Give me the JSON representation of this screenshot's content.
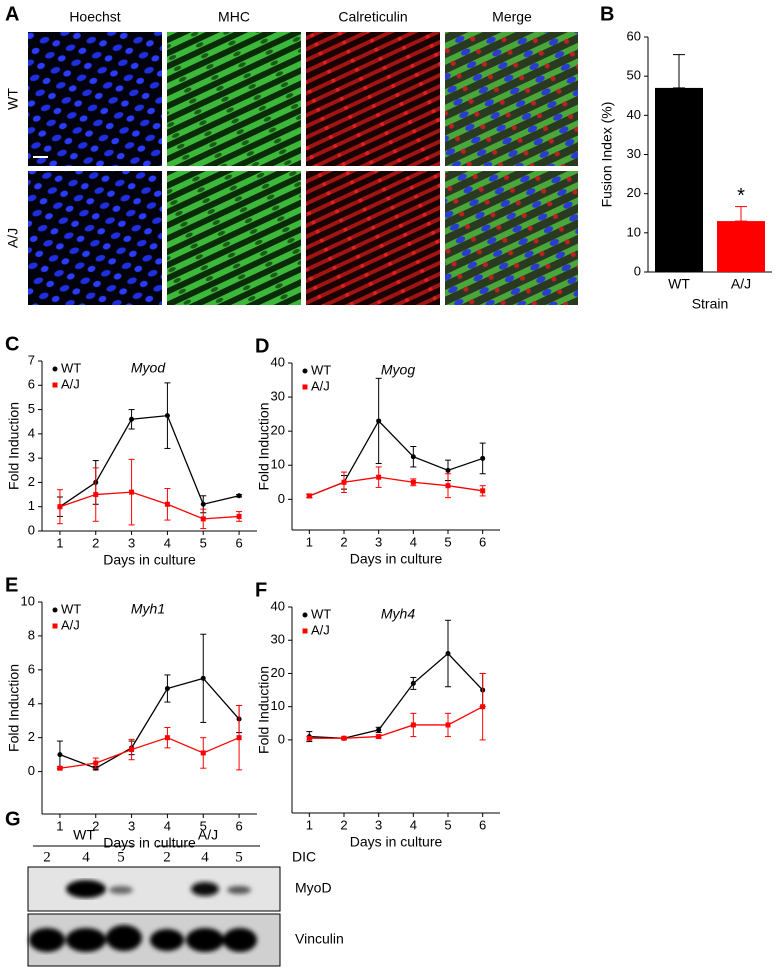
{
  "image_grid": {
    "panel": "A",
    "columns": [
      "Hoechst",
      "MHC",
      "Calreticulin",
      "Merge"
    ],
    "rows": [
      "WT",
      "A/J"
    ]
  },
  "chart_data": [
    {
      "type": "bar",
      "panel": "B",
      "ylabel": "Fusion Index (%)",
      "xlabel": "Strain",
      "categories": [
        "WT",
        "A/J"
      ],
      "values": [
        47,
        13
      ],
      "errors": [
        8.5,
        3.7
      ],
      "colors": [
        "#000000",
        "#ff0000"
      ],
      "annotation": "*",
      "ylim": [
        0,
        60
      ],
      "yticks": [
        0,
        10,
        20,
        30,
        40,
        50,
        60
      ]
    },
    {
      "type": "line",
      "panel": "C",
      "title": "Myod",
      "xlabel": "Days in culture",
      "ylabel": "Fold Induction",
      "x": [
        1,
        2,
        3,
        4,
        5,
        6
      ],
      "xlim": [
        0.5,
        6.5
      ],
      "xticks": [
        1,
        2,
        3,
        4,
        5,
        6
      ],
      "ylim": [
        0,
        7
      ],
      "yticks": [
        0,
        1,
        2,
        3,
        4,
        5,
        6,
        7
      ],
      "series": [
        {
          "name": "WT",
          "color": "#000000",
          "values": [
            1.0,
            2.0,
            4.6,
            4.75,
            1.1,
            1.45
          ],
          "errors": [
            0.4,
            0.9,
            0.4,
            1.35,
            0.35,
            0.05
          ]
        },
        {
          "name": "A/J",
          "color": "#ff0000",
          "values": [
            1.0,
            1.5,
            1.6,
            1.1,
            0.5,
            0.6
          ],
          "errors": [
            0.7,
            1.1,
            1.35,
            0.65,
            0.4,
            0.2
          ]
        }
      ]
    },
    {
      "type": "line",
      "panel": "D",
      "title": "Myog",
      "xlabel": "Days in culture",
      "ylabel": "Fold Induction",
      "x": [
        1,
        2,
        3,
        4,
        5,
        6
      ],
      "xlim": [
        0.5,
        6.5
      ],
      "xticks": [
        1,
        2,
        3,
        4,
        5,
        6
      ],
      "ylim": [
        -9,
        40
      ],
      "yticks": [
        0,
        10,
        20,
        30,
        40
      ],
      "series": [
        {
          "name": "WT",
          "color": "#000000",
          "values": [
            1,
            5,
            23,
            12.5,
            8.5,
            12
          ],
          "errors": [
            0.5,
            2,
            12.5,
            3,
            3,
            4.5
          ]
        },
        {
          "name": "A/J",
          "color": "#ff0000",
          "values": [
            1,
            5,
            6.5,
            5,
            4,
            2.5
          ],
          "errors": [
            0.5,
            3,
            3,
            1,
            3.5,
            1.5
          ]
        }
      ]
    },
    {
      "type": "line",
      "panel": "E",
      "title": "Myh1",
      "xlabel": "Days in culture",
      "ylabel": "Fold Induction",
      "x": [
        1,
        2,
        3,
        4,
        5,
        6
      ],
      "xlim": [
        0.5,
        6.5
      ],
      "xticks": [
        1,
        2,
        3,
        4,
        5,
        6
      ],
      "ylim": [
        -2.5,
        10
      ],
      "yticks": [
        0,
        2,
        4,
        6,
        8,
        10
      ],
      "series": [
        {
          "name": "WT",
          "color": "#000000",
          "values": [
            1.0,
            0.2,
            1.4,
            4.9,
            5.5,
            3.1
          ],
          "errors": [
            0.8,
            0.1,
            0.4,
            0.8,
            2.6,
            0.8
          ]
        },
        {
          "name": "A/J",
          "color": "#ff0000",
          "values": [
            0.2,
            0.5,
            1.3,
            2.0,
            1.1,
            2.0
          ],
          "errors": [
            0.1,
            0.3,
            0.6,
            0.6,
            0.9,
            1.9
          ]
        }
      ]
    },
    {
      "type": "line",
      "panel": "F",
      "title": "Myh4",
      "xlabel": "Days in culture",
      "ylabel": "Fold Induction",
      "x": [
        1,
        2,
        3,
        4,
        5,
        6
      ],
      "xlim": [
        0.5,
        6.5
      ],
      "xticks": [
        1,
        2,
        3,
        4,
        5,
        6
      ],
      "ylim": [
        -22,
        40
      ],
      "yticks": [
        0,
        10,
        20,
        30,
        40
      ],
      "series": [
        {
          "name": "WT",
          "color": "#000000",
          "values": [
            1,
            0.5,
            3,
            17,
            26,
            15
          ],
          "errors": [
            1.5,
            0.3,
            0.8,
            1.8,
            10,
            5
          ]
        },
        {
          "name": "A/J",
          "color": "#ff0000",
          "values": [
            0.5,
            0.5,
            1,
            4.5,
            4.5,
            10
          ],
          "errors": [
            0.5,
            0.3,
            0.5,
            3.5,
            3.5,
            10
          ]
        }
      ]
    }
  ],
  "blot": {
    "panel": "G",
    "groups": [
      {
        "name": "WT",
        "lanes": [
          "2",
          "4",
          "5"
        ]
      },
      {
        "name": "A/J",
        "lanes": [
          "2",
          "4",
          "5"
        ]
      }
    ],
    "lane_axis": "DIC",
    "rows": [
      "MyoD",
      "Vinculin"
    ]
  }
}
